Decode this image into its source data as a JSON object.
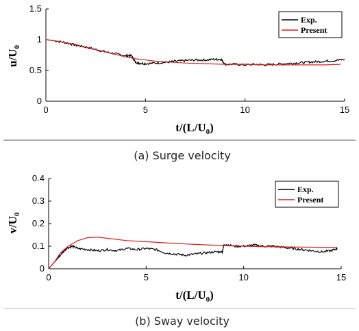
{
  "chart_data": [
    {
      "type": "line",
      "caption": "(a) Surge velocity",
      "xlabel": "t/(L/U0)",
      "xlabel_parts": {
        "main": "t/(L/U",
        "sub": "0",
        "end": ")"
      },
      "ylabel": "u/U0",
      "ylabel_parts": {
        "main": "u/U",
        "sub": "0"
      },
      "xlim": [
        0,
        15
      ],
      "ylim": [
        0,
        1.5
      ],
      "xticks": [
        "0",
        "5",
        "10",
        "15"
      ],
      "yticks": [
        "0",
        "0.5",
        "1",
        "1.5"
      ],
      "legend_position": "top-right",
      "series": [
        {
          "name": "Exp.",
          "color": "#000000",
          "x": [
            0,
            0.5,
            1.0,
            1.5,
            2.0,
            2.5,
            3.0,
            3.5,
            4.0,
            4.3,
            4.5,
            4.7,
            5.0,
            5.5,
            6.0,
            6.5,
            7.0,
            7.5,
            8.0,
            8.5,
            8.8,
            9.0,
            9.5,
            10.0,
            10.5,
            11.0,
            11.5,
            12.0,
            12.5,
            13.0,
            13.5,
            14.0,
            14.5,
            15.0
          ],
          "y": [
            1.0,
            0.98,
            0.95,
            0.91,
            0.88,
            0.84,
            0.8,
            0.77,
            0.74,
            0.74,
            0.63,
            0.62,
            0.61,
            0.62,
            0.63,
            0.65,
            0.66,
            0.67,
            0.67,
            0.68,
            0.68,
            0.6,
            0.6,
            0.59,
            0.6,
            0.59,
            0.6,
            0.61,
            0.62,
            0.63,
            0.64,
            0.65,
            0.66,
            0.68
          ]
        },
        {
          "name": "Present",
          "color": "#e0191b",
          "x": [
            0,
            0.5,
            1.0,
            1.5,
            2.0,
            2.5,
            3.0,
            3.5,
            4.0,
            4.5,
            5.0,
            5.5,
            6.0,
            7.0,
            8.0,
            9.0,
            10.0,
            11.0,
            12.0,
            13.0,
            14.0,
            14.8
          ],
          "y": [
            1.0,
            0.98,
            0.95,
            0.92,
            0.88,
            0.84,
            0.8,
            0.76,
            0.72,
            0.69,
            0.67,
            0.65,
            0.64,
            0.62,
            0.61,
            0.6,
            0.6,
            0.59,
            0.59,
            0.59,
            0.59,
            0.6
          ]
        }
      ]
    },
    {
      "type": "line",
      "caption": "(b) Sway velocity",
      "xlabel": "t/(L/U0)",
      "xlabel_parts": {
        "main": "t/(L/U",
        "sub": "0",
        "end": ")"
      },
      "ylabel": "v/U0",
      "ylabel_parts": {
        "main": "v/U",
        "sub": "0"
      },
      "xlim": [
        0,
        15
      ],
      "ylim": [
        0,
        0.4
      ],
      "xticks": [
        "0",
        "5",
        "10",
        "15"
      ],
      "yticks": [
        "0",
        "0.1",
        "0.2",
        "0.3",
        "0.4"
      ],
      "legend_position": "top-right",
      "series": [
        {
          "name": "Exp.",
          "color": "#000000",
          "x": [
            0,
            0.3,
            0.6,
            0.9,
            1.2,
            1.5,
            2.0,
            2.5,
            3.0,
            3.5,
            4.0,
            4.5,
            5.0,
            5.5,
            6.0,
            6.5,
            7.0,
            7.5,
            8.0,
            8.5,
            8.9,
            9.0,
            9.5,
            10.0,
            10.5,
            11.0,
            11.5,
            12.0,
            12.5,
            13.0,
            13.5,
            14.0,
            14.5,
            14.8
          ],
          "y": [
            0,
            0.03,
            0.06,
            0.09,
            0.1,
            0.09,
            0.085,
            0.08,
            0.085,
            0.08,
            0.09,
            0.085,
            0.09,
            0.085,
            0.07,
            0.065,
            0.06,
            0.065,
            0.07,
            0.075,
            0.075,
            0.11,
            0.1,
            0.1,
            0.105,
            0.1,
            0.1,
            0.095,
            0.09,
            0.085,
            0.08,
            0.075,
            0.08,
            0.09
          ]
        },
        {
          "name": "Present",
          "color": "#e0191b",
          "x": [
            0,
            0.3,
            0.6,
            1.0,
            1.5,
            2.0,
            2.5,
            3.0,
            4.0,
            5.0,
            6.0,
            7.0,
            8.0,
            9.0,
            10.0,
            11.0,
            12.0,
            13.0,
            14.0,
            14.8
          ],
          "y": [
            0,
            0.03,
            0.07,
            0.1,
            0.125,
            0.138,
            0.14,
            0.135,
            0.125,
            0.12,
            0.115,
            0.11,
            0.106,
            0.103,
            0.1,
            0.098,
            0.097,
            0.096,
            0.095,
            0.095
          ]
        }
      ]
    }
  ]
}
